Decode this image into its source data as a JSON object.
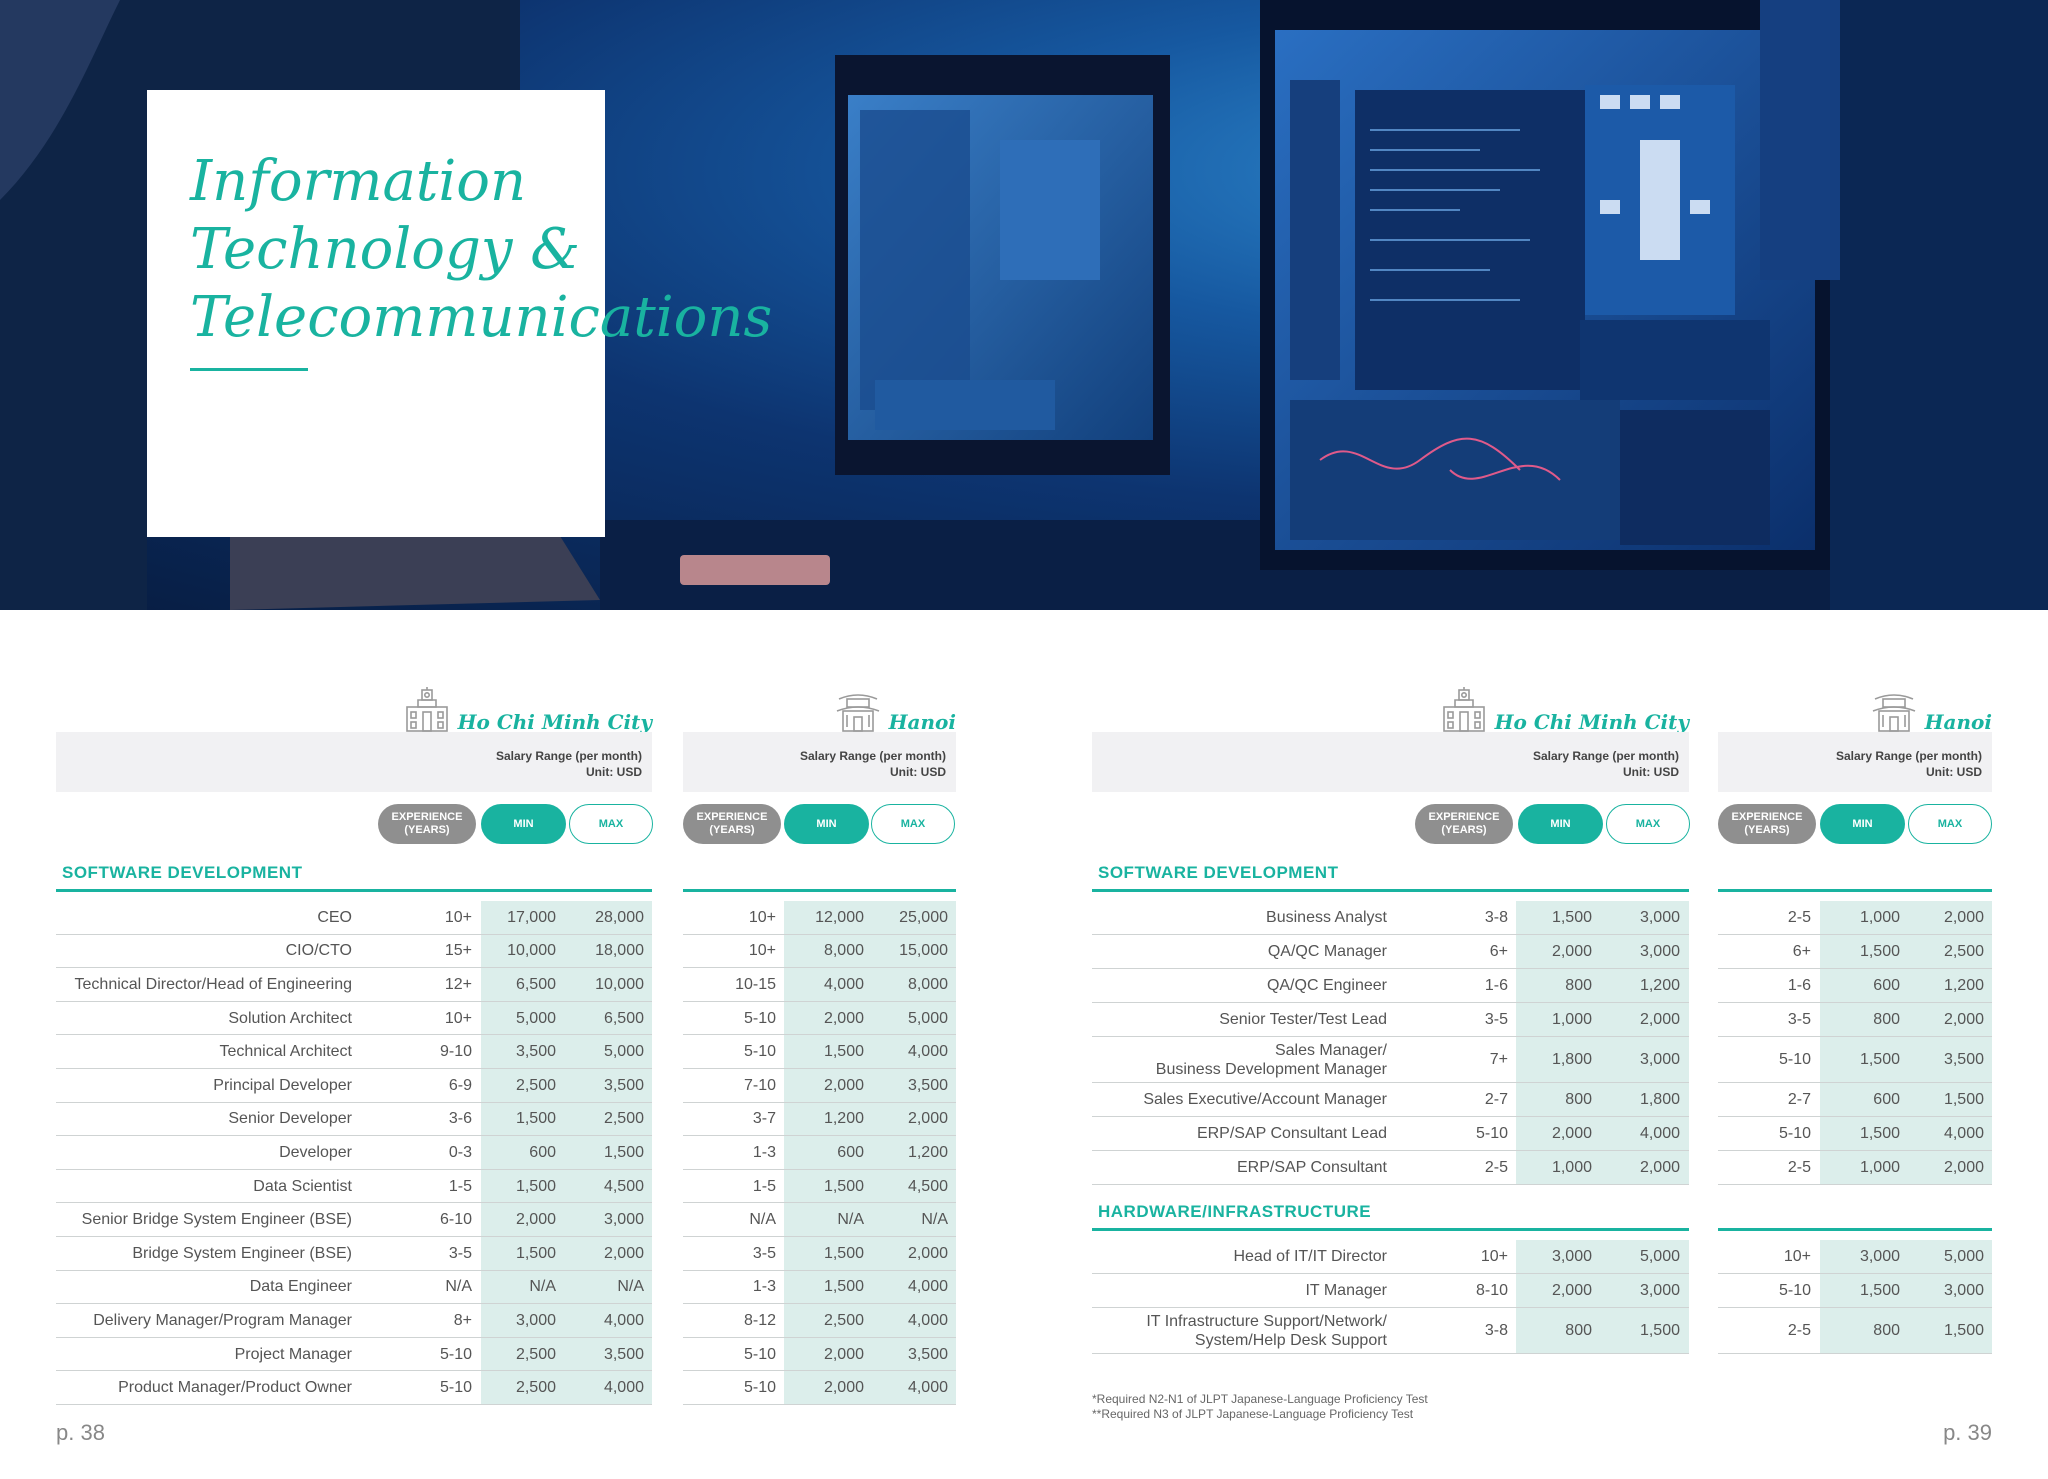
{
  "title": {
    "line1": "Information",
    "line2": "Technology &",
    "line3": "Telecommunications"
  },
  "colors": {
    "accent": "#19b3a0",
    "shade": "#dceeeb",
    "exp_pill": "#8f8f8f"
  },
  "icons": {
    "hcmc": "city-hall-icon",
    "hanoi": "pagoda-icon"
  },
  "headers": {
    "hcmc": "Ho Chi Minh City",
    "hanoi": "Hanoi",
    "salary_range": "Salary Range (per month)",
    "unit": "Unit: USD",
    "experience": "EXPERIENCE (YEARS)",
    "min": "MIN",
    "max": "MAX"
  },
  "left_page": {
    "section": "SOFTWARE DEVELOPMENT",
    "rows": [
      {
        "role": "CEO",
        "hcmc": [
          "10+",
          "17,000",
          "28,000"
        ],
        "hanoi": [
          "10+",
          "12,000",
          "25,000"
        ]
      },
      {
        "role": "CIO/CTO",
        "hcmc": [
          "15+",
          "10,000",
          "18,000"
        ],
        "hanoi": [
          "10+",
          "8,000",
          "15,000"
        ]
      },
      {
        "role": "Technical Director/Head of Engineering",
        "hcmc": [
          "12+",
          "6,500",
          "10,000"
        ],
        "hanoi": [
          "10-15",
          "4,000",
          "8,000"
        ]
      },
      {
        "role": "Solution Architect",
        "hcmc": [
          "10+",
          "5,000",
          "6,500"
        ],
        "hanoi": [
          "5-10",
          "2,000",
          "5,000"
        ]
      },
      {
        "role": "Technical Architect",
        "hcmc": [
          "9-10",
          "3,500",
          "5,000"
        ],
        "hanoi": [
          "5-10",
          "1,500",
          "4,000"
        ]
      },
      {
        "role": "Principal Developer",
        "hcmc": [
          "6-9",
          "2,500",
          "3,500"
        ],
        "hanoi": [
          "7-10",
          "2,000",
          "3,500"
        ]
      },
      {
        "role": "Senior Developer",
        "hcmc": [
          "3-6",
          "1,500",
          "2,500"
        ],
        "hanoi": [
          "3-7",
          "1,200",
          "2,000"
        ]
      },
      {
        "role": "Developer",
        "hcmc": [
          "0-3",
          "600",
          "1,500"
        ],
        "hanoi": [
          "1-3",
          "600",
          "1,200"
        ]
      },
      {
        "role": "Data Scientist",
        "hcmc": [
          "1-5",
          "1,500",
          "4,500"
        ],
        "hanoi": [
          "1-5",
          "1,500",
          "4,500"
        ]
      },
      {
        "role": "Senior Bridge System Engineer (BSE)",
        "hcmc": [
          "6-10",
          "2,000",
          "3,000"
        ],
        "hanoi": [
          "N/A",
          "N/A",
          "N/A"
        ]
      },
      {
        "role": "Bridge System Engineer (BSE)",
        "hcmc": [
          "3-5",
          "1,500",
          "2,000"
        ],
        "hanoi": [
          "3-5",
          "1,500",
          "2,000"
        ]
      },
      {
        "role": "Data Engineer",
        "hcmc": [
          "N/A",
          "N/A",
          "N/A"
        ],
        "hanoi": [
          "1-3",
          "1,500",
          "4,000"
        ]
      },
      {
        "role": "Delivery Manager/Program Manager",
        "hcmc": [
          "8+",
          "3,000",
          "4,000"
        ],
        "hanoi": [
          "8-12",
          "2,500",
          "4,000"
        ]
      },
      {
        "role": "Project Manager",
        "hcmc": [
          "5-10",
          "2,500",
          "3,500"
        ],
        "hanoi": [
          "5-10",
          "2,000",
          "3,500"
        ]
      },
      {
        "role": "Product Manager/Product Owner",
        "hcmc": [
          "5-10",
          "2,500",
          "4,000"
        ],
        "hanoi": [
          "5-10",
          "2,000",
          "4,000"
        ]
      }
    ],
    "page_number": "p. 38"
  },
  "right_page": {
    "section1": "SOFTWARE DEVELOPMENT",
    "rows1": [
      {
        "role": "Business Analyst",
        "hcmc": [
          "3-8",
          "1,500",
          "3,000"
        ],
        "hanoi": [
          "2-5",
          "1,000",
          "2,000"
        ]
      },
      {
        "role": "QA/QC Manager",
        "hcmc": [
          "6+",
          "2,000",
          "3,000"
        ],
        "hanoi": [
          "6+",
          "1,500",
          "2,500"
        ]
      },
      {
        "role": "QA/QC Engineer",
        "hcmc": [
          "1-6",
          "800",
          "1,200"
        ],
        "hanoi": [
          "1-6",
          "600",
          "1,200"
        ]
      },
      {
        "role": "Senior Tester/Test Lead",
        "hcmc": [
          "3-5",
          "1,000",
          "2,000"
        ],
        "hanoi": [
          "3-5",
          "800",
          "2,000"
        ]
      },
      {
        "role": "Sales Manager/\nBusiness Development Manager",
        "hcmc": [
          "7+",
          "1,800",
          "3,000"
        ],
        "hanoi": [
          "5-10",
          "1,500",
          "3,500"
        ]
      },
      {
        "role": "Sales Executive/Account Manager",
        "hcmc": [
          "2-7",
          "800",
          "1,800"
        ],
        "hanoi": [
          "2-7",
          "600",
          "1,500"
        ]
      },
      {
        "role": "ERP/SAP Consultant Lead",
        "hcmc": [
          "5-10",
          "2,000",
          "4,000"
        ],
        "hanoi": [
          "5-10",
          "1,500",
          "4,000"
        ]
      },
      {
        "role": "ERP/SAP Consultant",
        "hcmc": [
          "2-5",
          "1,000",
          "2,000"
        ],
        "hanoi": [
          "2-5",
          "1,000",
          "2,000"
        ]
      }
    ],
    "section2": "HARDWARE/INFRASTRUCTURE",
    "rows2": [
      {
        "role": "Head of IT/IT Director",
        "hcmc": [
          "10+",
          "3,000",
          "5,000"
        ],
        "hanoi": [
          "10+",
          "3,000",
          "5,000"
        ]
      },
      {
        "role": "IT Manager",
        "hcmc": [
          "8-10",
          "2,000",
          "3,000"
        ],
        "hanoi": [
          "5-10",
          "1,500",
          "3,000"
        ]
      },
      {
        "role": "IT Infrastructure Support/Network/\nSystem/Help Desk Support",
        "hcmc": [
          "3-8",
          "800",
          "1,500"
        ],
        "hanoi": [
          "2-5",
          "800",
          "1,500"
        ]
      }
    ],
    "footnote1": "*Required N2-N1 of JLPT Japanese-Language Proficiency Test",
    "footnote2": "**Required N3 of JLPT Japanese-Language Proficiency Test",
    "page_number": "p. 39"
  }
}
